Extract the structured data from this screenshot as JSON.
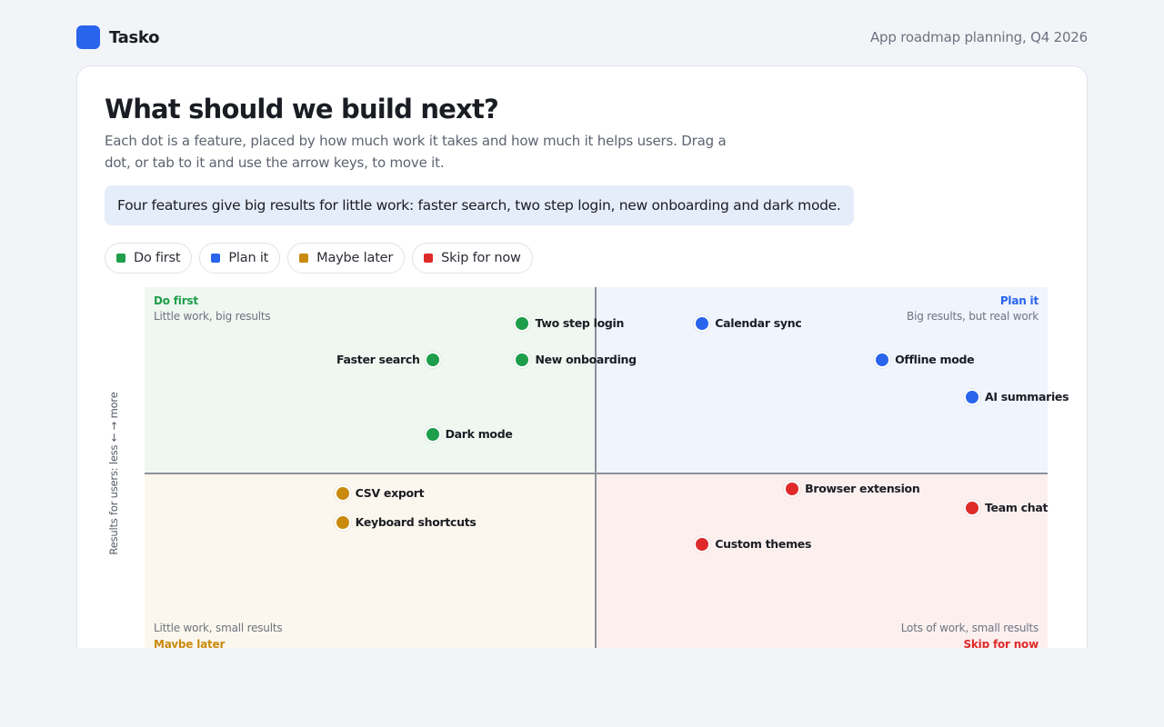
{
  "app": {
    "name": "Tasko",
    "context": "App roadmap planning, Q4 2026"
  },
  "page": {
    "title": "What should we build next?",
    "subtitle": "Each dot is a feature, placed by how much work it takes and how much it helps users. Drag a dot, or tab to it and use the arrow keys, to move it.",
    "insight": "Four features give big results for little work: faster search, two step login, new onboarding and dark mode."
  },
  "legend": [
    {
      "key": "do",
      "label": "Do first",
      "color": "#1e9e4a"
    },
    {
      "key": "plan",
      "label": "Plan it",
      "color": "#2864ec"
    },
    {
      "key": "maybe",
      "label": "Maybe later",
      "color": "#c98a0e"
    },
    {
      "key": "skip",
      "label": "Skip for now",
      "color": "#df2a2a"
    }
  ],
  "chart": {
    "y_axis_label": "Results for users: less ← → more",
    "quadrants": {
      "do_first": {
        "name": "Do first",
        "desc": "Little work, big results",
        "color": "#1e9e4a"
      },
      "plan_it": {
        "name": "Plan it",
        "desc": "Big results, but real work",
        "color": "#2864ec"
      },
      "maybe_later": {
        "name": "Maybe later",
        "desc": "Little work, small results",
        "color": "#c98a0e"
      },
      "skip": {
        "name": "Skip for now",
        "desc": "Lots of work, small results",
        "color": "#df2a2a"
      }
    }
  },
  "chart_data": {
    "type": "scatter",
    "xlabel": "",
    "ylabel": "Results for users: less ← → more",
    "xlim": [
      0,
      10
    ],
    "ylim": [
      0,
      10
    ],
    "points": [
      {
        "name": "Two step login",
        "x": 4.0,
        "y": 8.1,
        "group": "do",
        "color": "#1e9e4a",
        "label_side": "right"
      },
      {
        "name": "Faster search",
        "x": 3.0,
        "y": 7.1,
        "group": "do",
        "color": "#1e9e4a",
        "label_side": "left"
      },
      {
        "name": "New onboarding",
        "x": 4.0,
        "y": 7.1,
        "group": "do",
        "color": "#1e9e4a",
        "label_side": "right"
      },
      {
        "name": "Dark mode",
        "x": 3.0,
        "y": 5.1,
        "group": "do",
        "color": "#1e9e4a",
        "label_side": "right"
      },
      {
        "name": "Calendar sync",
        "x": 6.0,
        "y": 8.1,
        "group": "plan",
        "color": "#2864ec",
        "label_side": "right"
      },
      {
        "name": "Offline mode",
        "x": 8.0,
        "y": 7.1,
        "group": "plan",
        "color": "#2864ec",
        "label_side": "right"
      },
      {
        "name": "AI summaries",
        "x": 9.0,
        "y": 6.1,
        "group": "plan",
        "color": "#2864ec",
        "label_side": "right"
      },
      {
        "name": "CSV export",
        "x": 2.0,
        "y": 3.5,
        "group": "maybe",
        "color": "#c98a0e",
        "label_side": "right"
      },
      {
        "name": "Keyboard shortcuts",
        "x": 2.0,
        "y": 2.7,
        "group": "maybe",
        "color": "#c98a0e",
        "label_side": "right"
      },
      {
        "name": "Browser extension",
        "x": 7.0,
        "y": 3.6,
        "group": "skip",
        "color": "#df2a2a",
        "label_side": "right"
      },
      {
        "name": "Team chat",
        "x": 9.0,
        "y": 3.1,
        "group": "skip",
        "color": "#df2a2a",
        "label_side": "right"
      },
      {
        "name": "Custom themes",
        "x": 6.0,
        "y": 2.1,
        "group": "skip",
        "color": "#df2a2a",
        "label_side": "right"
      }
    ]
  }
}
